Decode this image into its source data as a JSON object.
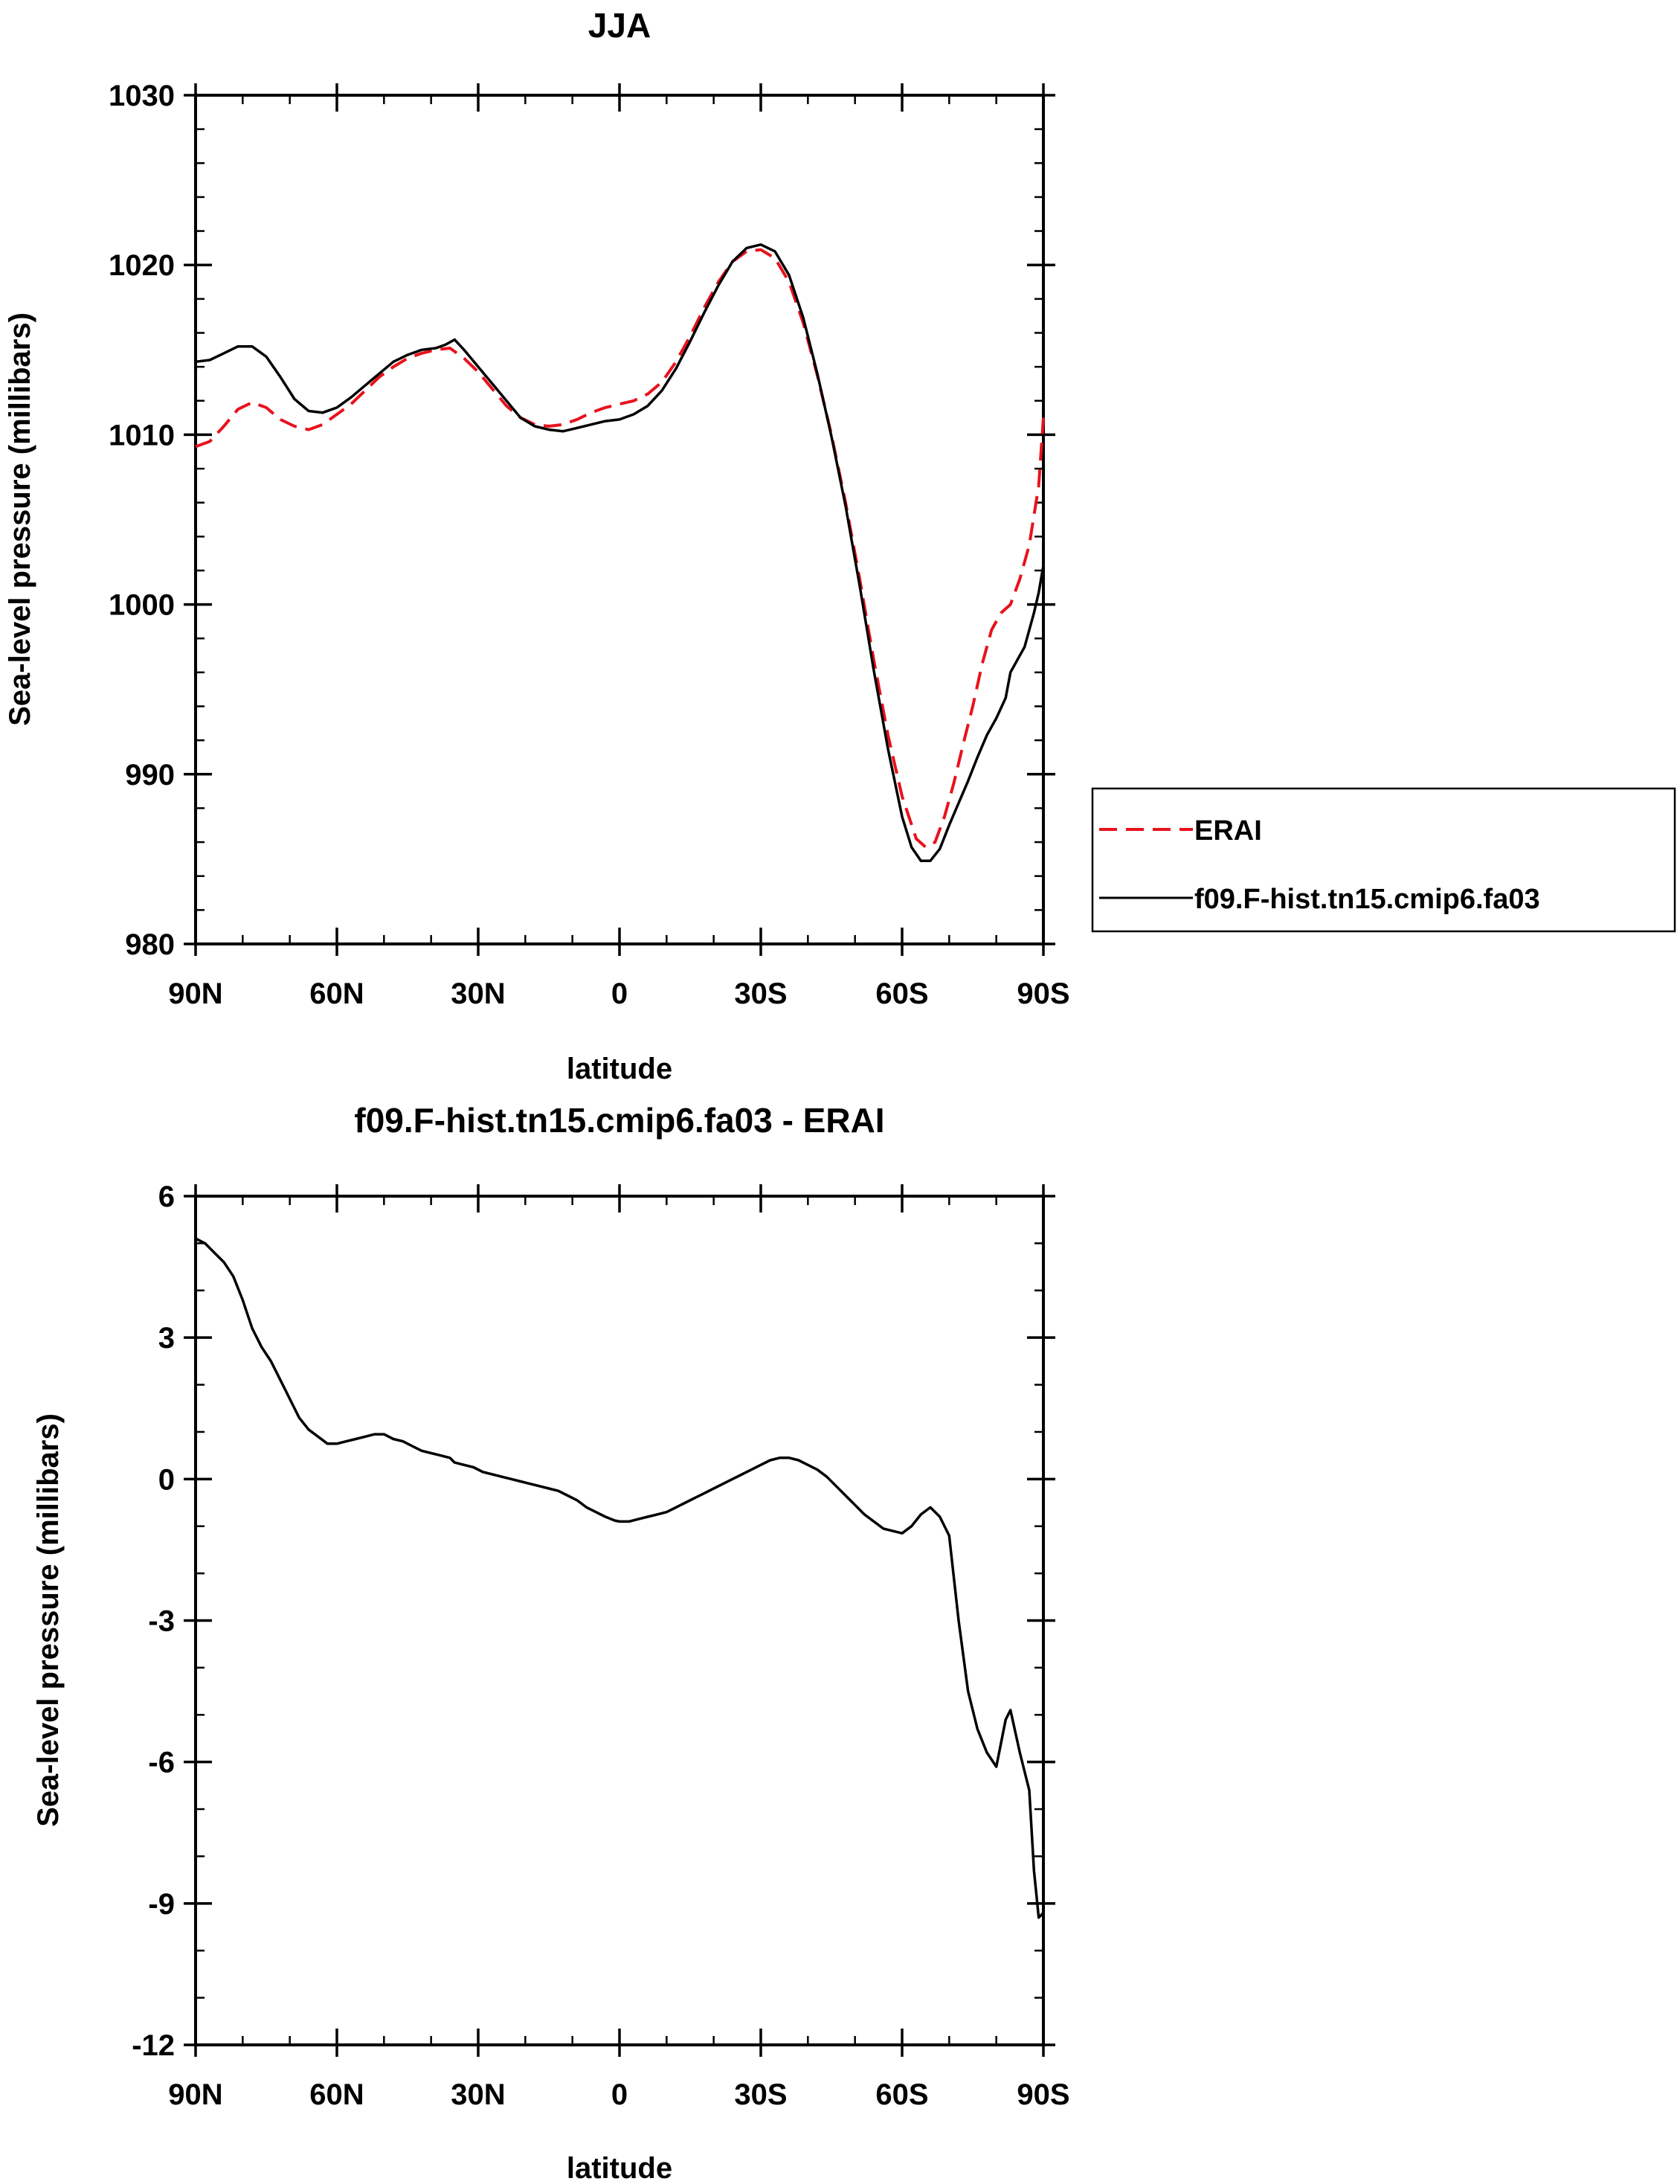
{
  "chart_data": [
    {
      "type": "line",
      "title": "JJA",
      "xlabel": "latitude",
      "ylabel": "Sea-level pressure (millibars)",
      "xlim": [
        90,
        -90
      ],
      "ylim": [
        980,
        1030
      ],
      "x_ticks": [
        90,
        60,
        30,
        0,
        -30,
        -60,
        -90
      ],
      "x_tick_labels": [
        "90N",
        "60N",
        "30N",
        "0",
        "30S",
        "60S",
        "90S"
      ],
      "y_ticks": [
        980,
        990,
        1000,
        1010,
        1020,
        1030
      ],
      "y_tick_labels": [
        "980",
        "990",
        "1000",
        "1010",
        "1020",
        "1030"
      ],
      "legend": {
        "position": "right",
        "entries": [
          "ERAI",
          "f09.F-hist.tn15.cmip6.fa03"
        ]
      },
      "series": [
        {
          "name": "ERAI",
          "color": "#e8121c",
          "dash": "dashed",
          "points": [
            [
              90,
              1009.3
            ],
            [
              87,
              1009.6
            ],
            [
              84,
              1010.5
            ],
            [
              81,
              1011.5
            ],
            [
              78,
              1011.9
            ],
            [
              75,
              1011.6
            ],
            [
              72,
              1010.9
            ],
            [
              69,
              1010.5
            ],
            [
              66,
              1010.3
            ],
            [
              63,
              1010.6
            ],
            [
              60,
              1011.2
            ],
            [
              57,
              1011.8
            ],
            [
              54,
              1012.6
            ],
            [
              51,
              1013.4
            ],
            [
              48,
              1014.0
            ],
            [
              45,
              1014.5
            ],
            [
              42,
              1014.8
            ],
            [
              39,
              1015.0
            ],
            [
              36,
              1015.1
            ],
            [
              33,
              1014.5
            ],
            [
              30,
              1013.7
            ],
            [
              27,
              1012.7
            ],
            [
              24,
              1011.7
            ],
            [
              21,
              1011.0
            ],
            [
              18,
              1010.6
            ],
            [
              15,
              1010.5
            ],
            [
              12,
              1010.6
            ],
            [
              9,
              1010.9
            ],
            [
              6,
              1011.3
            ],
            [
              3,
              1011.6
            ],
            [
              0,
              1011.8
            ],
            [
              -3,
              1012.0
            ],
            [
              -6,
              1012.4
            ],
            [
              -9,
              1013.1
            ],
            [
              -12,
              1014.3
            ],
            [
              -15,
              1015.8
            ],
            [
              -18,
              1017.5
            ],
            [
              -21,
              1019.0
            ],
            [
              -24,
              1020.2
            ],
            [
              -27,
              1020.8
            ],
            [
              -30,
              1020.9
            ],
            [
              -33,
              1020.4
            ],
            [
              -36,
              1019.0
            ],
            [
              -39,
              1016.6
            ],
            [
              -42,
              1013.5
            ],
            [
              -45,
              1010.0
            ],
            [
              -48,
              1006.0
            ],
            [
              -51,
              1001.5
            ],
            [
              -54,
              996.7
            ],
            [
              -57,
              992.3
            ],
            [
              -60,
              988.7
            ],
            [
              -63,
              986.2
            ],
            [
              -65,
              985.7
            ],
            [
              -67,
              986.0
            ],
            [
              -69,
              987.5
            ],
            [
              -71,
              989.5
            ],
            [
              -73,
              991.8
            ],
            [
              -75,
              994.0
            ],
            [
              -77,
              996.5
            ],
            [
              -79,
              998.5
            ],
            [
              -81,
              999.5
            ],
            [
              -83,
              1000.0
            ],
            [
              -85,
              1001.5
            ],
            [
              -87,
              1003.5
            ],
            [
              -89,
              1007.0
            ],
            [
              -90,
              1011.0
            ]
          ]
        },
        {
          "name": "f09.F-hist.tn15.cmip6.fa03",
          "color": "#000000",
          "dash": "solid",
          "points": [
            [
              90,
              1014.3
            ],
            [
              87,
              1014.4
            ],
            [
              84,
              1014.8
            ],
            [
              81,
              1015.2
            ],
            [
              78,
              1015.2
            ],
            [
              75,
              1014.6
            ],
            [
              72,
              1013.4
            ],
            [
              69,
              1012.1
            ],
            [
              66,
              1011.4
            ],
            [
              63,
              1011.3
            ],
            [
              60,
              1011.6
            ],
            [
              57,
              1012.2
            ],
            [
              54,
              1012.9
            ],
            [
              51,
              1013.6
            ],
            [
              48,
              1014.3
            ],
            [
              45,
              1014.7
            ],
            [
              42,
              1015.0
            ],
            [
              39,
              1015.1
            ],
            [
              37,
              1015.3
            ],
            [
              35,
              1015.6
            ],
            [
              33,
              1015.0
            ],
            [
              30,
              1014.0
            ],
            [
              27,
              1013.0
            ],
            [
              24,
              1012.0
            ],
            [
              21,
              1011.0
            ],
            [
              18,
              1010.5
            ],
            [
              15,
              1010.3
            ],
            [
              12,
              1010.2
            ],
            [
              9,
              1010.4
            ],
            [
              6,
              1010.6
            ],
            [
              3,
              1010.8
            ],
            [
              0,
              1010.9
            ],
            [
              -3,
              1011.2
            ],
            [
              -6,
              1011.7
            ],
            [
              -9,
              1012.6
            ],
            [
              -12,
              1013.9
            ],
            [
              -15,
              1015.5
            ],
            [
              -18,
              1017.2
            ],
            [
              -21,
              1018.8
            ],
            [
              -24,
              1020.2
            ],
            [
              -27,
              1021.0
            ],
            [
              -30,
              1021.2
            ],
            [
              -33,
              1020.8
            ],
            [
              -36,
              1019.4
            ],
            [
              -39,
              1016.9
            ],
            [
              -42,
              1013.6
            ],
            [
              -45,
              1009.9
            ],
            [
              -48,
              1005.8
            ],
            [
              -51,
              1001.1
            ],
            [
              -54,
              996.1
            ],
            [
              -57,
              991.5
            ],
            [
              -60,
              987.5
            ],
            [
              -62,
              985.7
            ],
            [
              -64,
              984.9
            ],
            [
              -66,
              984.9
            ],
            [
              -68,
              985.6
            ],
            [
              -70,
              987.0
            ],
            [
              -72,
              988.3
            ],
            [
              -74,
              989.6
            ],
            [
              -76,
              991.0
            ],
            [
              -78,
              992.3
            ],
            [
              -80,
              993.3
            ],
            [
              -82,
              994.5
            ],
            [
              -83,
              996.0
            ],
            [
              -84,
              996.5
            ],
            [
              -86,
              997.5
            ],
            [
              -87,
              998.5
            ],
            [
              -88,
              999.5
            ],
            [
              -89,
              1000.7
            ],
            [
              -90,
              1002.3
            ]
          ]
        }
      ]
    },
    {
      "type": "line",
      "title": "f09.F-hist.tn15.cmip6.fa03 - ERAI",
      "xlabel": "latitude",
      "ylabel": "Sea-level pressure (millibars)",
      "xlim": [
        90,
        -90
      ],
      "ylim": [
        -12,
        6
      ],
      "x_ticks": [
        90,
        60,
        30,
        0,
        -30,
        -60,
        -90
      ],
      "x_tick_labels": [
        "90N",
        "60N",
        "30N",
        "0",
        "30S",
        "60S",
        "90S"
      ],
      "y_ticks": [
        -12,
        -9,
        -6,
        -3,
        0,
        3,
        6
      ],
      "y_tick_labels": [
        "-12",
        "-9",
        "-6",
        "-3",
        "0",
        "3",
        "6"
      ],
      "series": [
        {
          "name": "f09.F-hist.tn15.cmip6.fa03 - ERAI",
          "color": "#000000",
          "dash": "solid",
          "points": [
            [
              90,
              5.1
            ],
            [
              88,
              5.0
            ],
            [
              86,
              4.8
            ],
            [
              84,
              4.6
            ],
            [
              82,
              4.3
            ],
            [
              80,
              3.8
            ],
            [
              78,
              3.2
            ],
            [
              76,
              2.8
            ],
            [
              74,
              2.5
            ],
            [
              72,
              2.1
            ],
            [
              70,
              1.7
            ],
            [
              68,
              1.3
            ],
            [
              66,
              1.05
            ],
            [
              64,
              0.9
            ],
            [
              62,
              0.75
            ],
            [
              60,
              0.75
            ],
            [
              58,
              0.8
            ],
            [
              56,
              0.85
            ],
            [
              54,
              0.9
            ],
            [
              52,
              0.95
            ],
            [
              50,
              0.95
            ],
            [
              48,
              0.85
            ],
            [
              46,
              0.8
            ],
            [
              44,
              0.7
            ],
            [
              42,
              0.6
            ],
            [
              40,
              0.55
            ],
            [
              38,
              0.5
            ],
            [
              36,
              0.45
            ],
            [
              35,
              0.35
            ],
            [
              33,
              0.3
            ],
            [
              31,
              0.25
            ],
            [
              29,
              0.15
            ],
            [
              27,
              0.1
            ],
            [
              25,
              0.05
            ],
            [
              23,
              0.0
            ],
            [
              21,
              -0.05
            ],
            [
              19,
              -0.1
            ],
            [
              17,
              -0.15
            ],
            [
              15,
              -0.2
            ],
            [
              13,
              -0.25
            ],
            [
              11,
              -0.35
            ],
            [
              9,
              -0.45
            ],
            [
              7,
              -0.6
            ],
            [
              5,
              -0.7
            ],
            [
              3,
              -0.8
            ],
            [
              1,
              -0.88
            ],
            [
              0,
              -0.9
            ],
            [
              -2,
              -0.9
            ],
            [
              -4,
              -0.85
            ],
            [
              -6,
              -0.8
            ],
            [
              -8,
              -0.75
            ],
            [
              -10,
              -0.7
            ],
            [
              -12,
              -0.6
            ],
            [
              -14,
              -0.5
            ],
            [
              -16,
              -0.4
            ],
            [
              -18,
              -0.3
            ],
            [
              -20,
              -0.2
            ],
            [
              -22,
              -0.1
            ],
            [
              -24,
              0.0
            ],
            [
              -26,
              0.1
            ],
            [
              -28,
              0.2
            ],
            [
              -30,
              0.3
            ],
            [
              -32,
              0.4
            ],
            [
              -34,
              0.45
            ],
            [
              -36,
              0.45
            ],
            [
              -38,
              0.4
            ],
            [
              -40,
              0.3
            ],
            [
              -42,
              0.2
            ],
            [
              -44,
              0.05
            ],
            [
              -46,
              -0.15
            ],
            [
              -48,
              -0.35
            ],
            [
              -50,
              -0.55
            ],
            [
              -52,
              -0.75
            ],
            [
              -54,
              -0.9
            ],
            [
              -56,
              -1.05
            ],
            [
              -58,
              -1.1
            ],
            [
              -60,
              -1.15
            ],
            [
              -62,
              -1.0
            ],
            [
              -64,
              -0.75
            ],
            [
              -66,
              -0.6
            ],
            [
              -68,
              -0.8
            ],
            [
              -70,
              -1.2
            ],
            [
              -72,
              -3.0
            ],
            [
              -74,
              -4.5
            ],
            [
              -76,
              -5.3
            ],
            [
              -78,
              -5.8
            ],
            [
              -80,
              -6.1
            ],
            [
              -82,
              -5.1
            ],
            [
              -83,
              -4.9
            ],
            [
              -85,
              -5.8
            ],
            [
              -87,
              -6.6
            ],
            [
              -88,
              -8.3
            ],
            [
              -89,
              -9.3
            ],
            [
              -90,
              -9.2
            ]
          ]
        }
      ]
    }
  ]
}
